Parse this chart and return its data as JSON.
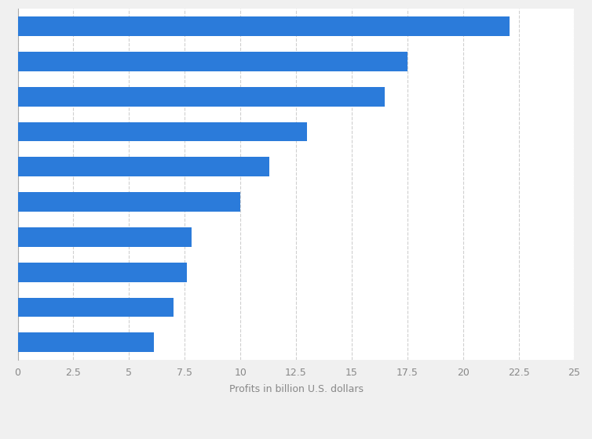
{
  "values": [
    22.1,
    17.5,
    16.5,
    13.0,
    11.3,
    10.0,
    7.8,
    7.6,
    7.0,
    6.1
  ],
  "bar_color": "#2b7bda",
  "background_color": "#f0f0f0",
  "plot_background_color": "#ffffff",
  "xlabel": "Profits in billion U.S. dollars",
  "xlabel_fontsize": 9,
  "xlabel_color": "#888888",
  "xlim": [
    0,
    25
  ],
  "xticks": [
    0,
    2.5,
    5,
    7.5,
    10,
    12.5,
    15,
    17.5,
    20,
    22.5,
    25
  ],
  "xtick_labels": [
    "0",
    "2.5",
    "5",
    "7.5",
    "10",
    "12.5",
    "15",
    "17.5",
    "20",
    "22.5",
    "25"
  ],
  "grid_color": "#d0d0d0",
  "grid_linestyle": "--",
  "bar_height": 0.55,
  "tick_fontsize": 9,
  "tick_color": "#888888"
}
